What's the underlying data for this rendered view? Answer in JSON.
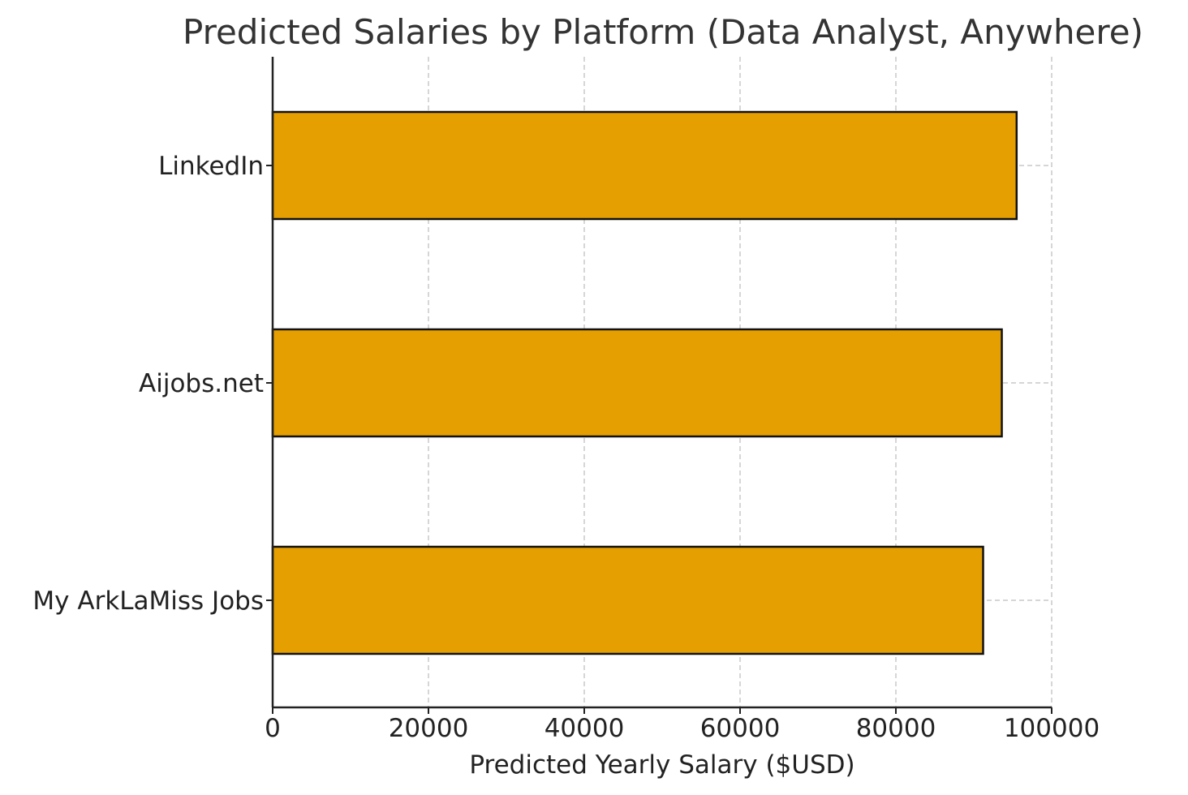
{
  "chart_data": {
    "type": "bar",
    "orientation": "horizontal",
    "title": "Predicted Salaries by Platform (Data Analyst, Anywhere)",
    "xlabel": "Predicted Yearly Salary ($USD)",
    "ylabel": "",
    "categories": [
      "LinkedIn",
      "Aijobs.net",
      "My ArkLaMiss Jobs"
    ],
    "values": [
      95500,
      93600,
      91200
    ],
    "xlim": [
      0,
      100000
    ],
    "xticks": [
      "0",
      "20000",
      "40000",
      "60000",
      "80000",
      "100000"
    ],
    "grid": true,
    "legend": false,
    "colors": {
      "bar": "#E69F00",
      "bar_edge": "#111111",
      "grid": "#c8c8c8"
    }
  }
}
